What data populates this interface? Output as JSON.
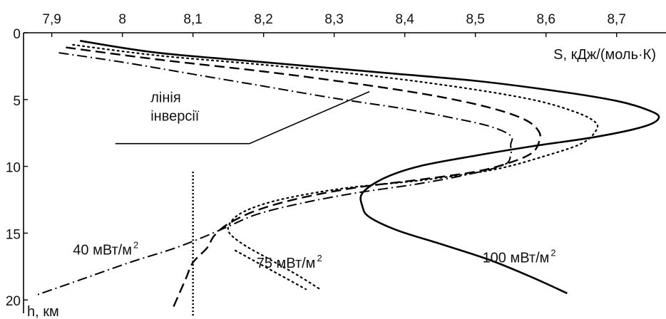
{
  "chart_data": {
    "type": "line",
    "title": "",
    "xlabel": "S, кДж/(моль·К)",
    "ylabel": "h, км",
    "x_axis_position": "top",
    "y_axis_inverted": true,
    "xlim": [
      7.86,
      8.77
    ],
    "ylim": [
      0,
      21
    ],
    "x_ticks": [
      "7,9",
      "8",
      "8,1",
      "8,2",
      "8,3",
      "8,4",
      "8,5",
      "8,6",
      "8,7"
    ],
    "x_tick_values": [
      7.9,
      8.0,
      8.1,
      8.2,
      8.3,
      8.4,
      8.5,
      8.6,
      8.7
    ],
    "y_ticks": [
      "0",
      "5",
      "10",
      "15",
      "20"
    ],
    "y_tick_values": [
      0,
      5,
      10,
      15,
      20
    ],
    "grid": false,
    "series": [
      {
        "name": "100 мВт/м²",
        "style": "solid",
        "points": [
          [
            7.94,
            0.6
          ],
          [
            8.05,
            1.5
          ],
          [
            8.2,
            2.2
          ],
          [
            8.35,
            2.9
          ],
          [
            8.5,
            3.6
          ],
          [
            8.62,
            4.4
          ],
          [
            8.7,
            5.1
          ],
          [
            8.74,
            5.7
          ],
          [
            8.76,
            6.3
          ],
          [
            8.74,
            7.0
          ],
          [
            8.67,
            7.8
          ],
          [
            8.58,
            8.5
          ],
          [
            8.5,
            9.2
          ],
          [
            8.42,
            10.0
          ],
          [
            8.37,
            10.9
          ],
          [
            8.34,
            12.0
          ],
          [
            8.34,
            13.0
          ],
          [
            8.35,
            13.8
          ],
          [
            8.39,
            14.8
          ],
          [
            8.45,
            15.8
          ],
          [
            8.52,
            17.0
          ],
          [
            8.58,
            18.3
          ],
          [
            8.63,
            19.5
          ]
        ]
      },
      {
        "name": "",
        "style": "dotted",
        "points": [
          [
            7.93,
            0.9
          ],
          [
            8.05,
            1.7
          ],
          [
            8.2,
            2.4
          ],
          [
            8.35,
            3.2
          ],
          [
            8.48,
            4.1
          ],
          [
            8.58,
            5.0
          ],
          [
            8.64,
            5.9
          ],
          [
            8.67,
            6.7
          ],
          [
            8.67,
            7.4
          ],
          [
            8.65,
            8.3
          ],
          [
            8.6,
            9.2
          ],
          [
            8.53,
            10.2
          ],
          [
            8.43,
            11.0
          ],
          [
            8.32,
            11.6
          ],
          [
            8.24,
            12.3
          ],
          [
            8.19,
            13.0
          ],
          [
            8.16,
            13.8
          ],
          [
            8.15,
            14.8
          ],
          [
            8.17,
            15.8
          ],
          [
            8.21,
            17.0
          ],
          [
            8.25,
            18.2
          ],
          [
            8.28,
            19.2
          ]
        ]
      },
      {
        "name": "75 мВт/м²",
        "style": "dashed",
        "points": [
          [
            7.92,
            1.1
          ],
          [
            8.05,
            2.0
          ],
          [
            8.2,
            2.9
          ],
          [
            8.33,
            3.8
          ],
          [
            8.44,
            4.7
          ],
          [
            8.52,
            5.6
          ],
          [
            8.57,
            6.5
          ],
          [
            8.59,
            7.4
          ],
          [
            8.59,
            8.2
          ],
          [
            8.58,
            9.0
          ],
          [
            8.55,
            9.7
          ],
          [
            8.5,
            10.4
          ],
          [
            8.42,
            11.0
          ],
          [
            8.33,
            11.6
          ],
          [
            8.25,
            12.4
          ],
          [
            8.19,
            13.3
          ],
          [
            8.15,
            14.3
          ],
          [
            8.13,
            15.2
          ],
          [
            8.12,
            16.1
          ],
          [
            8.1,
            17.2
          ],
          [
            8.09,
            18.4
          ],
          [
            8.08,
            19.6
          ],
          [
            8.07,
            20.8
          ]
        ]
      },
      {
        "name": "40 мВт/м²",
        "style": "dashdot",
        "points": [
          [
            7.91,
            1.5
          ],
          [
            8.0,
            2.2
          ],
          [
            8.1,
            3.1
          ],
          [
            8.2,
            4.0
          ],
          [
            8.3,
            4.9
          ],
          [
            8.4,
            5.7
          ],
          [
            8.47,
            6.4
          ],
          [
            8.52,
            7.0
          ],
          [
            8.55,
            7.7
          ],
          [
            8.55,
            8.4
          ],
          [
            8.55,
            9.2
          ],
          [
            8.54,
            9.9
          ],
          [
            8.49,
            10.6
          ],
          [
            8.42,
            11.3
          ],
          [
            8.33,
            12.0
          ],
          [
            8.25,
            12.8
          ],
          [
            8.19,
            13.6
          ],
          [
            8.15,
            14.5
          ],
          [
            8.11,
            15.4
          ],
          [
            8.07,
            16.2
          ],
          [
            8.01,
            17.2
          ],
          [
            7.94,
            18.5
          ],
          [
            7.88,
            19.6
          ]
        ]
      }
    ],
    "vertical_line": {
      "style": "dotted",
      "x": 8.1,
      "y_range": [
        10.4,
        21.3
      ]
    },
    "leaders": [
      {
        "style": "dotted",
        "points": [
          [
            8.16,
            16.3
          ],
          [
            8.26,
            19.2
          ]
        ]
      },
      {
        "style": "solid",
        "points": [
          [
            7.99,
            8.3
          ],
          [
            8.18,
            8.3
          ],
          [
            8.35,
            4.4
          ]
        ]
      }
    ],
    "annotations": [
      {
        "lines": [
          "лінія",
          "інверсії"
        ],
        "x": 8.04,
        "y": 5.2
      },
      {
        "text": "40 мВт/м",
        "sup": "2",
        "x": 7.93,
        "y": 16.6
      },
      {
        "text": "75 мВт/м",
        "sup": "2",
        "x": 8.19,
        "y": 17.6
      },
      {
        "text": "100 мВт/м",
        "sup": "2",
        "x": 8.51,
        "y": 17.2
      }
    ]
  }
}
